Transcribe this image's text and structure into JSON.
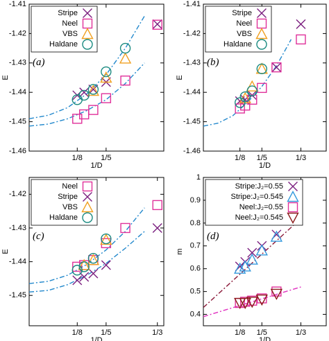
{
  "chart_data": [
    {
      "type": "scatter",
      "panel_label": "(a)",
      "xlabel": "1/D",
      "ylabel": "E",
      "legend": "upper left",
      "xlim": [
        0,
        0.35
      ],
      "ylim": [
        -1.46,
        -1.41
      ],
      "xticks": [
        {
          "value": 0.125,
          "label": "1/8"
        },
        {
          "value": 0.2,
          "label": "1/5"
        }
      ],
      "yticks": [
        -1.46,
        -1.45,
        -1.44,
        -1.43,
        -1.42,
        -1.41
      ],
      "series": [
        {
          "name": "Stripe",
          "color": "#7b1f7f",
          "marker": "x",
          "x": [
            0.125,
            0.1429,
            0.1667,
            0.2,
            0.3333
          ],
          "values": [
            -1.441,
            -1.44,
            -1.439,
            -1.4365,
            -1.4168
          ]
        },
        {
          "name": "Neel",
          "color": "#e0309a",
          "marker": "square",
          "x": [
            0.125,
            0.1429,
            0.1667,
            0.2,
            0.25,
            0.3333
          ],
          "values": [
            -1.449,
            -1.4475,
            -1.446,
            -1.442,
            -1.436,
            -1.417
          ]
        },
        {
          "name": "VBS",
          "color": "#f0a020",
          "marker": "triangle",
          "x": [
            0.1667,
            0.2,
            0.25
          ],
          "values": [
            -1.4395,
            -1.435,
            -1.4285
          ]
        },
        {
          "name": "Haldane",
          "color": "#1a8a80",
          "marker": "circle",
          "x": [
            0.125,
            0.1429,
            0.1667,
            0.2,
            0.25
          ],
          "values": [
            -1.4425,
            -1.441,
            -1.439,
            -1.433,
            -1.425
          ]
        }
      ],
      "fits": [
        {
          "color": "#2288cc",
          "x": [
            0,
            0.05,
            0.1,
            0.15,
            0.2,
            0.25,
            0.3
          ],
          "values": [
            -1.449,
            -1.4478,
            -1.4452,
            -1.4405,
            -1.434,
            -1.425,
            -1.414
          ]
        },
        {
          "color": "#2288cc",
          "x": [
            0,
            0.05,
            0.1,
            0.15,
            0.2,
            0.25,
            0.3
          ],
          "values": [
            -1.4515,
            -1.4508,
            -1.449,
            -1.4462,
            -1.4425,
            -1.437,
            -1.43
          ]
        }
      ]
    },
    {
      "type": "scatter",
      "panel_label": "(b)",
      "xlabel": "1/D",
      "ylabel": "E",
      "legend": "upper left",
      "xlim": [
        0,
        0.42
      ],
      "ylim": [
        -1.46,
        -1.41
      ],
      "xticks": [
        {
          "value": 0.125,
          "label": "1/8"
        },
        {
          "value": 0.2,
          "label": "1/5"
        },
        {
          "value": 0.3333,
          "label": "1/3"
        }
      ],
      "yticks": [
        -1.46,
        -1.45,
        -1.44,
        -1.43,
        -1.42,
        -1.41
      ],
      "series": [
        {
          "name": "Stripe",
          "color": "#7b1f7f",
          "marker": "x",
          "x": [
            0.125,
            0.1429,
            0.1667,
            0.25,
            0.3333
          ],
          "values": [
            -1.443,
            -1.4425,
            -1.441,
            -1.4315,
            -1.4168
          ]
        },
        {
          "name": "Neel",
          "color": "#e0309a",
          "marker": "square",
          "x": [
            0.125,
            0.1429,
            0.1667,
            0.2,
            0.25,
            0.3333
          ],
          "values": [
            -1.4455,
            -1.4445,
            -1.4425,
            -1.4385,
            -1.4315,
            -1.422
          ]
        },
        {
          "name": "VBS",
          "color": "#f0a020",
          "marker": "triangle",
          "x": [
            0.1429,
            0.1667,
            0.2
          ],
          "values": [
            -1.442,
            -1.438,
            -1.432
          ]
        },
        {
          "name": "Haldane",
          "color": "#1a8a80",
          "marker": "circle",
          "x": [
            0.125,
            0.1429,
            0.1667,
            0.2
          ],
          "values": [
            -1.4435,
            -1.4415,
            -1.4395,
            -1.432
          ]
        }
      ],
      "fits": [
        {
          "color": "#2288cc",
          "x": [
            0,
            0.05,
            0.1,
            0.15,
            0.2,
            0.25,
            0.3
          ],
          "values": [
            -1.4515,
            -1.4505,
            -1.448,
            -1.4435,
            -1.438,
            -1.431,
            -1.422
          ]
        }
      ]
    },
    {
      "type": "scatter",
      "panel_label": "(c)",
      "xlabel": "1/D",
      "ylabel": "E",
      "legend": "upper left",
      "xlim": [
        0,
        0.35
      ],
      "ylim": [
        -1.459,
        -1.415
      ],
      "xticks": [
        {
          "value": 0.125,
          "label": "1/8"
        },
        {
          "value": 0.2,
          "label": "1/5"
        },
        {
          "value": 0.3333,
          "label": "1/3"
        }
      ],
      "yticks": [
        -1.45,
        -1.44,
        -1.43,
        -1.42
      ],
      "series": [
        {
          "name": "Neel",
          "color": "#e0309a",
          "marker": "square",
          "x": [
            0.125,
            0.1429,
            0.1667,
            0.2,
            0.25,
            0.3333
          ],
          "values": [
            -1.4415,
            -1.441,
            -1.4395,
            -1.4345,
            -1.43,
            -1.4232
          ]
        },
        {
          "name": "Stripe",
          "color": "#7b1f7f",
          "marker": "x",
          "x": [
            0.125,
            0.1429,
            0.1667,
            0.2,
            0.3333
          ],
          "values": [
            -1.4455,
            -1.4445,
            -1.4435,
            -1.441,
            -1.43
          ]
        },
        {
          "name": "VBS",
          "color": "#f0a020",
          "marker": "triangle",
          "x": [
            0.1429,
            0.1667,
            0.2
          ],
          "values": [
            -1.441,
            -1.4395,
            -1.4335
          ]
        },
        {
          "name": "Haldane",
          "color": "#1a8a80",
          "marker": "circle",
          "x": [
            0.125,
            0.1429,
            0.1667,
            0.2
          ],
          "values": [
            -1.4425,
            -1.4415,
            -1.439,
            -1.4332
          ]
        }
      ],
      "fits": [
        {
          "color": "#2288cc",
          "x": [
            0,
            0.05,
            0.1,
            0.15,
            0.2,
            0.25,
            0.3
          ],
          "values": [
            -1.4465,
            -1.4458,
            -1.444,
            -1.4408,
            -1.4365,
            -1.431,
            -1.424
          ]
        },
        {
          "color": "#2288cc",
          "x": [
            0,
            0.05,
            0.1,
            0.15,
            0.2,
            0.25,
            0.3
          ],
          "values": [
            -1.449,
            -1.4485,
            -1.4468,
            -1.444,
            -1.4405,
            -1.436,
            -1.431
          ]
        }
      ]
    },
    {
      "type": "scatter",
      "panel_label": "(d)",
      "xlabel": "1/D",
      "ylabel": "m",
      "legend": "upper left",
      "xlim": [
        0,
        0.42
      ],
      "ylim": [
        0.35,
        1
      ],
      "xticks": [
        {
          "value": 0.125,
          "label": "1/8"
        },
        {
          "value": 0.2,
          "label": "1/5"
        },
        {
          "value": 0.3333,
          "label": "1/3"
        }
      ],
      "yticks": [
        0.4,
        0.5,
        0.6,
        0.7,
        0.8,
        0.9,
        1
      ],
      "series": [
        {
          "name": "Stripe:J₂=0.55",
          "color": "#7b1f7f",
          "marker": "x",
          "x": [
            0.125,
            0.1429,
            0.1667,
            0.2,
            0.25
          ],
          "values": [
            0.61,
            0.63,
            0.67,
            0.7,
            0.75
          ]
        },
        {
          "name": "Stripe:J₂=0.545",
          "color": "#3399dd",
          "marker": "triangle",
          "x": [
            0.125,
            0.1429,
            0.1667,
            0.2,
            0.25
          ],
          "values": [
            0.6,
            0.61,
            0.64,
            0.68,
            0.74
          ]
        },
        {
          "name": "Neel:J₂=0.55",
          "color": "#e0309a",
          "marker": "square",
          "x": [
            0.125,
            0.1429,
            0.1667,
            0.2,
            0.25
          ],
          "values": [
            0.45,
            0.455,
            0.46,
            0.47,
            0.5
          ]
        },
        {
          "name": "Neel:J₂=0.545",
          "color": "#8b1a1a",
          "marker": "triangle-down",
          "x": [
            0.125,
            0.1429,
            0.1667,
            0.2,
            0.25
          ],
          "values": [
            0.45,
            0.45,
            0.455,
            0.465,
            0.49
          ]
        }
      ],
      "fits": [
        {
          "color": "#8b1a3a",
          "x": [
            0,
            0.3333
          ],
          "values": [
            0.43,
            0.82
          ]
        },
        {
          "color": "#e030c0",
          "x": [
            0,
            0.3333
          ],
          "values": [
            0.39,
            0.52
          ]
        }
      ]
    }
  ]
}
